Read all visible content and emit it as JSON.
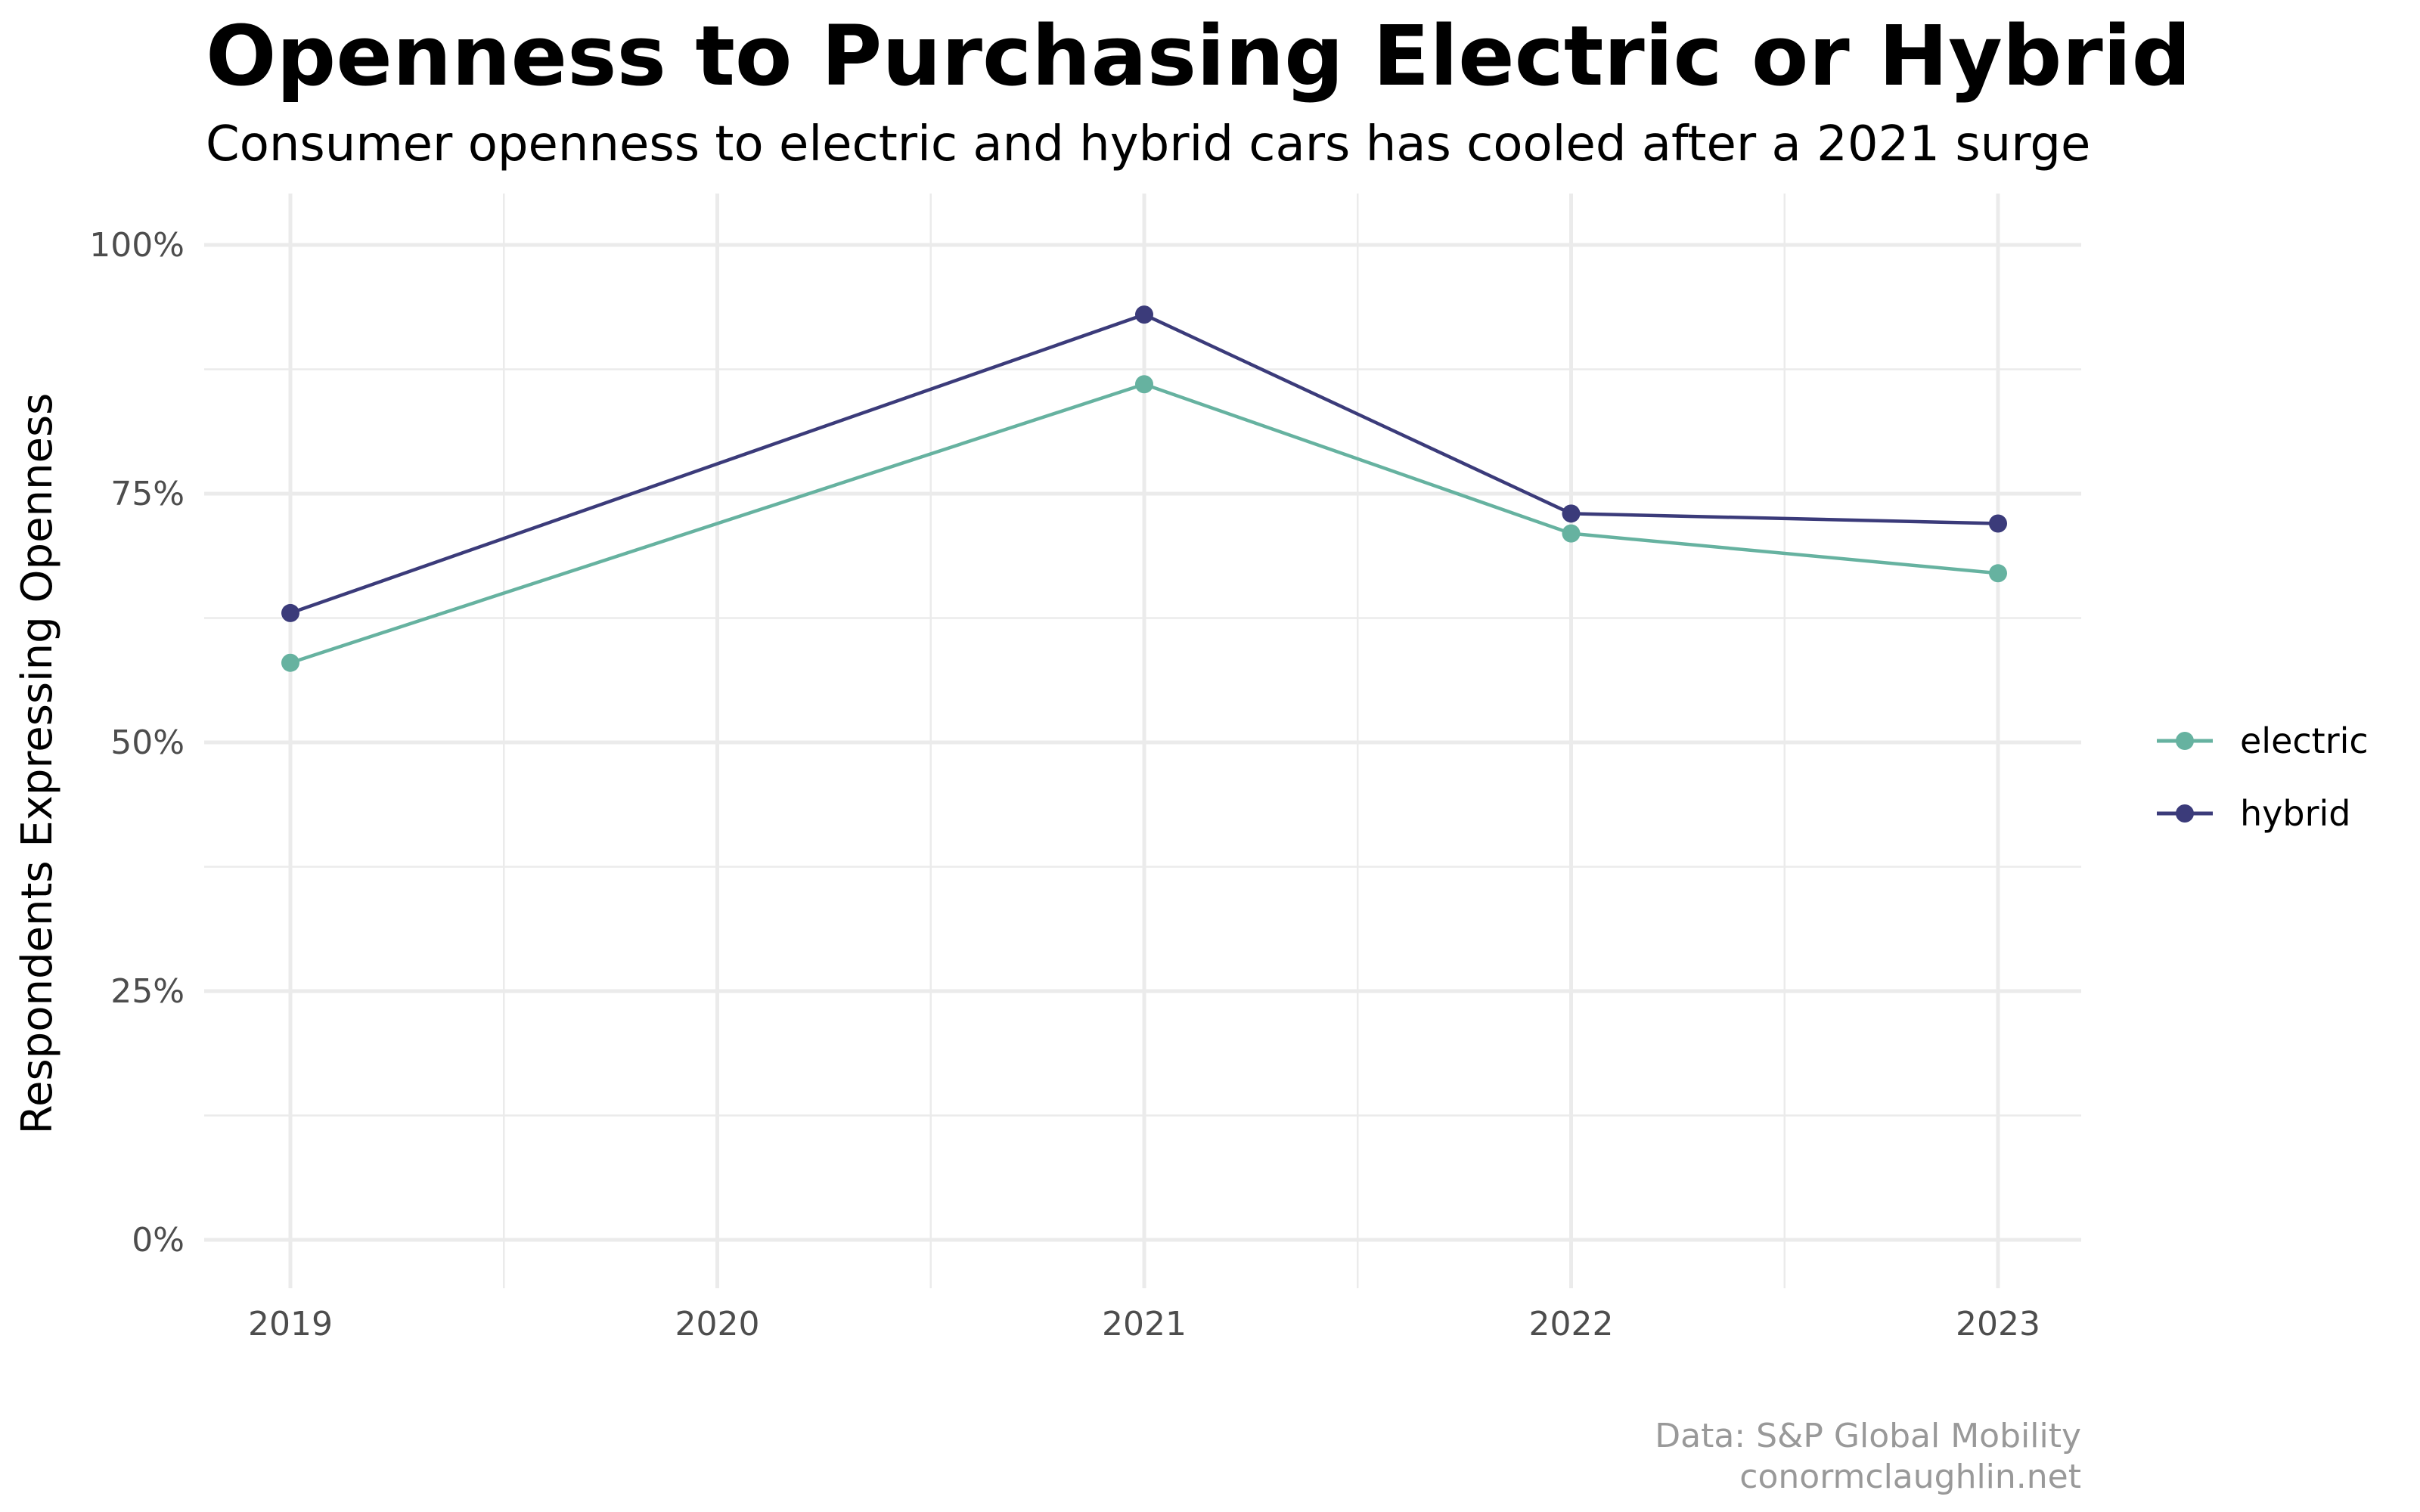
{
  "chart_data": {
    "type": "line",
    "title": "Openness to Purchasing Electric or Hybrid",
    "subtitle": "Consumer openness to electric and hybrid cars has cooled after a 2021 surge",
    "xlabel": "",
    "ylabel": "Respondents Expressing Openness",
    "x": [
      2019,
      2020,
      2021,
      2022,
      2023
    ],
    "x_tick_labels": [
      "2019",
      "2020",
      "2021",
      "2022",
      "2023"
    ],
    "y_ticks": [
      0,
      25,
      50,
      75,
      100
    ],
    "y_tick_labels": [
      "0%",
      "25%",
      "50%",
      "75%",
      "100%"
    ],
    "ylim": [
      0,
      100
    ],
    "grid": true,
    "legend_position": "right",
    "series": [
      {
        "name": "electric",
        "color": "#66b2a0",
        "x": [
          2019,
          2021,
          2022,
          2023
        ],
        "values": [
          58,
          86,
          71,
          67
        ]
      },
      {
        "name": "hybrid",
        "color": "#3b3b7a",
        "x": [
          2019,
          2021,
          2022,
          2023
        ],
        "values": [
          63,
          93,
          73,
          72
        ]
      }
    ],
    "caption": [
      "Data: S&P Global Mobility",
      "conormclaughlin.net"
    ]
  }
}
